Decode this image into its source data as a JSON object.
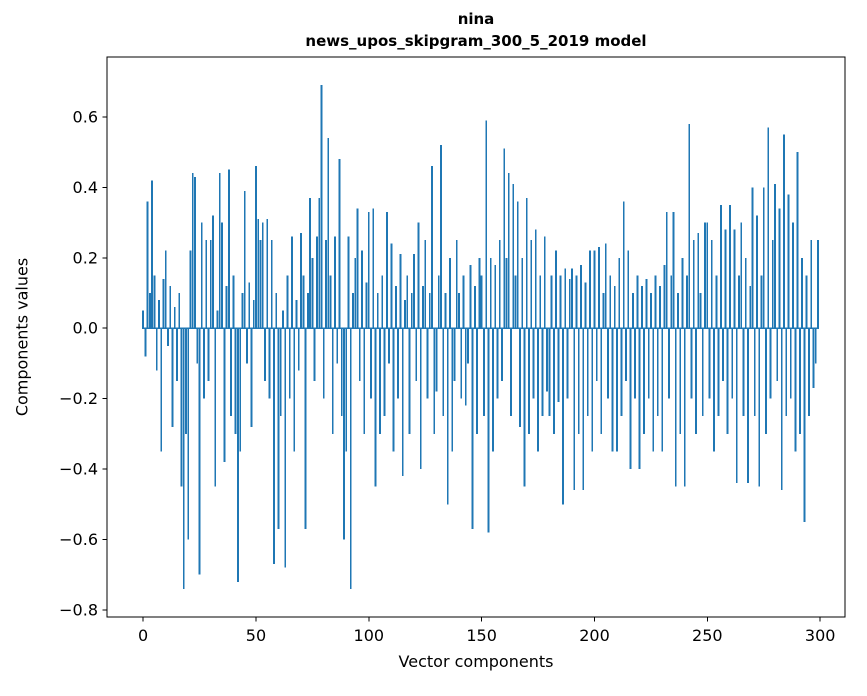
{
  "header": {
    "title_line1": "nina",
    "title_line2": "news_upos_skipgram_300_5_2019 model"
  },
  "colors": {
    "bar": "#1f77b4",
    "axis": "#000000",
    "background": "#ffffff"
  },
  "chart_data": {
    "type": "bar",
    "title": "nina\nnews_upos_skipgram_300_5_2019 model",
    "xlabel": "Vector components",
    "ylabel": "Components values",
    "legend": "none",
    "grid": false,
    "xlim": [
      -16,
      311
    ],
    "ylim": [
      -0.82,
      0.77
    ],
    "xticks": [
      0,
      50,
      100,
      150,
      200,
      250,
      300
    ],
    "yticks": [
      -0.8,
      -0.6,
      -0.4,
      -0.2,
      0.0,
      0.2,
      0.4,
      0.6
    ],
    "bar_color": "#1f77b4",
    "x_start": 0,
    "values": [
      0.05,
      -0.08,
      0.36,
      0.1,
      0.42,
      0.15,
      -0.12,
      0.08,
      -0.35,
      0.14,
      0.22,
      -0.05,
      0.12,
      -0.28,
      0.06,
      -0.15,
      0.1,
      -0.45,
      -0.74,
      -0.3,
      -0.6,
      0.22,
      0.44,
      0.43,
      -0.1,
      -0.7,
      0.3,
      -0.2,
      0.25,
      -0.15,
      0.25,
      0.32,
      -0.45,
      0.05,
      0.44,
      0.3,
      -0.38,
      0.12,
      0.45,
      -0.25,
      0.15,
      -0.3,
      -0.72,
      -0.35,
      0.1,
      0.39,
      -0.1,
      0.13,
      -0.28,
      0.08,
      0.46,
      0.31,
      0.25,
      0.3,
      -0.15,
      0.31,
      -0.2,
      0.25,
      -0.67,
      0.1,
      -0.57,
      -0.25,
      0.05,
      -0.68,
      0.15,
      -0.2,
      0.26,
      -0.35,
      0.08,
      -0.12,
      0.27,
      0.15,
      -0.57,
      0.1,
      0.37,
      0.2,
      -0.15,
      0.26,
      0.37,
      0.69,
      -0.2,
      0.25,
      0.54,
      0.15,
      -0.3,
      0.26,
      -0.1,
      0.48,
      -0.25,
      -0.6,
      -0.35,
      0.26,
      -0.74,
      0.1,
      0.2,
      0.34,
      -0.15,
      0.22,
      -0.3,
      0.13,
      0.33,
      -0.2,
      0.34,
      -0.45,
      0.1,
      -0.3,
      0.15,
      -0.25,
      0.33,
      -0.1,
      0.24,
      -0.35,
      0.12,
      -0.2,
      0.21,
      -0.42,
      0.08,
      0.15,
      -0.3,
      0.1,
      0.21,
      -0.15,
      0.3,
      -0.4,
      0.12,
      0.25,
      -0.2,
      0.1,
      0.46,
      -0.3,
      -0.18,
      0.15,
      0.52,
      -0.25,
      0.1,
      -0.5,
      0.2,
      -0.35,
      -0.15,
      0.25,
      0.1,
      -0.2,
      0.15,
      -0.22,
      -0.1,
      0.18,
      -0.57,
      0.12,
      -0.3,
      0.2,
      0.15,
      -0.25,
      0.59,
      -0.58,
      0.2,
      -0.35,
      0.18,
      -0.2,
      0.25,
      -0.15,
      0.51,
      0.2,
      0.44,
      -0.25,
      0.41,
      0.15,
      0.36,
      -0.28,
      0.2,
      -0.45,
      0.37,
      -0.3,
      0.25,
      -0.2,
      0.28,
      -0.35,
      0.15,
      -0.25,
      0.26,
      -0.18,
      -0.25,
      0.15,
      -0.3,
      0.22,
      -0.21,
      0.15,
      -0.5,
      0.17,
      -0.2,
      0.14,
      0.17,
      -0.46,
      0.15,
      -0.3,
      0.18,
      -0.46,
      0.13,
      -0.25,
      0.22,
      -0.35,
      0.22,
      -0.15,
      0.23,
      -0.3,
      0.1,
      0.24,
      -0.2,
      0.15,
      -0.35,
      0.12,
      -0.35,
      0.2,
      -0.25,
      0.36,
      -0.15,
      0.22,
      -0.4,
      0.1,
      -0.2,
      0.15,
      -0.4,
      0.12,
      -0.3,
      0.14,
      -0.2,
      0.1,
      -0.35,
      0.15,
      -0.25,
      0.12,
      -0.35,
      0.18,
      0.33,
      -0.2,
      0.15,
      0.33,
      -0.45,
      0.1,
      -0.3,
      0.2,
      -0.45,
      0.15,
      0.58,
      -0.2,
      0.25,
      -0.3,
      0.27,
      0.1,
      -0.25,
      0.3,
      0.3,
      -0.2,
      0.25,
      -0.35,
      0.15,
      -0.25,
      0.35,
      -0.15,
      0.28,
      -0.3,
      0.35,
      -0.2,
      0.28,
      -0.44,
      0.15,
      0.3,
      -0.25,
      0.2,
      -0.44,
      0.12,
      0.4,
      -0.25,
      0.32,
      -0.45,
      0.15,
      0.4,
      -0.3,
      0.57,
      -0.2,
      0.25,
      0.41,
      -0.15,
      0.34,
      -0.46,
      0.55,
      -0.25,
      0.38,
      -0.2,
      0.3,
      -0.35,
      0.5,
      -0.3,
      0.2,
      -0.55,
      0.15,
      -0.25,
      0.25,
      -0.17,
      -0.1,
      0.25
    ]
  }
}
